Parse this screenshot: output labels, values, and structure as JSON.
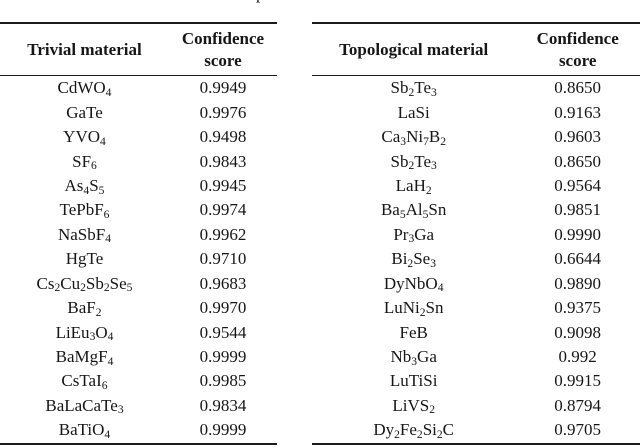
{
  "page": {
    "background": "#ffffff",
    "text_color": "#161616",
    "rule_color": "#1c1c1c",
    "caption_fragment": "p"
  },
  "tables": [
    {
      "id": "trivial",
      "header": {
        "material": "Trivial material",
        "score": "Confidence\nscore"
      },
      "rows": [
        {
          "material": "CdWO_4",
          "score": "0.9949"
        },
        {
          "material": "GaTe",
          "score": "0.9976"
        },
        {
          "material": "YVO_4",
          "score": "0.9498"
        },
        {
          "material": "SF_6",
          "score": "0.9843"
        },
        {
          "material": "As_4S_5",
          "score": "0.9945"
        },
        {
          "material": "TePbF_6",
          "score": "0.9974"
        },
        {
          "material": "NaSbF_4",
          "score": "0.9962"
        },
        {
          "material": "HgTe",
          "score": "0.9710"
        },
        {
          "material": "Cs_2Cu_2Sb_2Se_5",
          "score": "0.9683"
        },
        {
          "material": "BaF_2",
          "score": "0.9970"
        },
        {
          "material": "LiEu_3O_4",
          "score": "0.9544"
        },
        {
          "material": "BaMgF_4",
          "score": "0.9999"
        },
        {
          "material": "CsTaI_6",
          "score": "0.9985"
        },
        {
          "material": "BaLaCaTe_3",
          "score": "0.9834"
        },
        {
          "material": "BaTiO_4",
          "score": "0.9999"
        }
      ]
    },
    {
      "id": "topological",
      "header": {
        "material": "Topological material",
        "score": "Confidence\nscore"
      },
      "rows": [
        {
          "material": "Sb_2Te_3",
          "score": "0.8650"
        },
        {
          "material": "LaSi",
          "score": "0.9163"
        },
        {
          "material": "Ca_3Ni_7B_2",
          "score": "0.9603"
        },
        {
          "material": "Sb_2Te_3",
          "score": "0.8650"
        },
        {
          "material": "LaH_2",
          "score": "0.9564"
        },
        {
          "material": "Ba_5Al_5Sn",
          "score": "0.9851"
        },
        {
          "material": "Pr_3Ga",
          "score": "0.9990"
        },
        {
          "material": "Bi_2Se_3",
          "score": "0.6644"
        },
        {
          "material": "DyNbO_4",
          "score": "0.9890"
        },
        {
          "material": "LuNi_2Sn",
          "score": "0.9375"
        },
        {
          "material": "FeB",
          "score": "0.9098"
        },
        {
          "material": "Nb_3Ga",
          "score": "0.992"
        },
        {
          "material": "LuTiSi",
          "score": "0.9915"
        },
        {
          "material": "LiVS_2",
          "score": "0.8794"
        },
        {
          "material": "Dy_2Fe_2Si_2C",
          "score": "0.9705"
        }
      ]
    }
  ]
}
